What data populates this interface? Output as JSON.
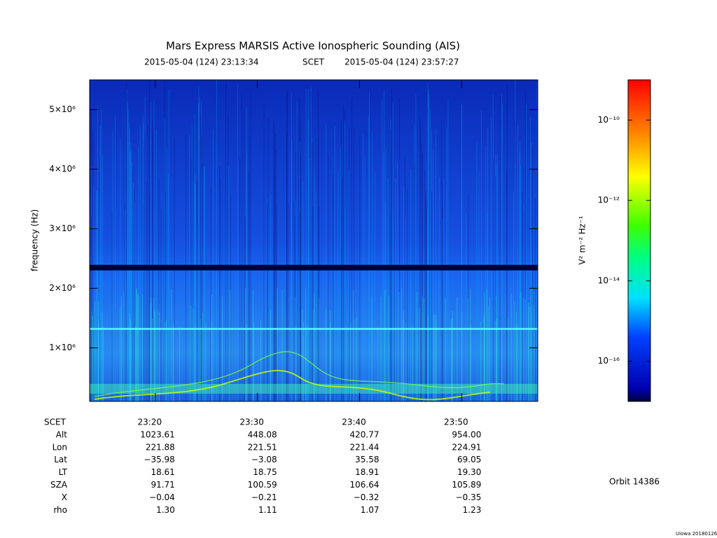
{
  "chart_data": {
    "type": "spectrogram",
    "title": "Mars Express MARSIS Active Ionospheric Sounding (AIS)",
    "time_start": "2015-05-04 (124) 23:13:34",
    "time_label": "SCET",
    "time_end": "2015-05-04 (124) 23:57:27",
    "ylabel": "frequency (Hz)",
    "ylim": [
      100000,
      5500000
    ],
    "yticks": [
      {
        "value": 1000000,
        "label": "1×10⁶"
      },
      {
        "value": 2000000,
        "label": "2×10⁶"
      },
      {
        "value": 3000000,
        "label": "3×10⁶"
      },
      {
        "value": 4000000,
        "label": "4×10⁶"
      },
      {
        "value": 5000000,
        "label": "5×10⁶"
      }
    ],
    "xlim": [
      1393.567,
      1437.45
    ],
    "xticks": [
      {
        "value": 1400,
        "label": "23:20"
      },
      {
        "value": 1410,
        "label": "23:30"
      },
      {
        "value": 1420,
        "label": "23:40"
      },
      {
        "value": 1430,
        "label": "23:50"
      }
    ],
    "colorbar": {
      "label": "V² m⁻² Hz⁻¹",
      "scale": "log",
      "lim": [
        1e-17,
        1e-09
      ],
      "ticks": [
        {
          "value": 1e-10,
          "label": "10⁻¹⁰"
        },
        {
          "value": 1e-12,
          "label": "10⁻¹²"
        },
        {
          "value": 1e-14,
          "label": "10⁻¹⁴"
        },
        {
          "value": 1e-16,
          "label": "10⁻¹⁶"
        }
      ]
    },
    "ephemeris": {
      "header": "SCET",
      "rows": [
        {
          "label": "Alt",
          "values": [
            "1023.61",
            "448.08",
            "420.77",
            "954.00"
          ]
        },
        {
          "label": "Lon",
          "values": [
            "221.88",
            "221.51",
            "221.44",
            "224.91"
          ]
        },
        {
          "label": "Lat",
          "values": [
            "−35.98",
            "−3.08",
            "35.58",
            "69.05"
          ]
        },
        {
          "label": "LT",
          "values": [
            "18.61",
            "18.75",
            "18.91",
            "19.30"
          ]
        },
        {
          "label": "SZA",
          "values": [
            "91.71",
            "100.59",
            "106.64",
            "105.89"
          ]
        },
        {
          "label": "X",
          "values": [
            "−0.04",
            "−0.21",
            "−0.32",
            "−0.35"
          ]
        },
        {
          "label": "rho",
          "values": [
            "1.30",
            "1.11",
            "1.07",
            "1.23"
          ]
        }
      ]
    },
    "orbit": "Orbit 14386",
    "footer": "Uiowa 20180126"
  }
}
